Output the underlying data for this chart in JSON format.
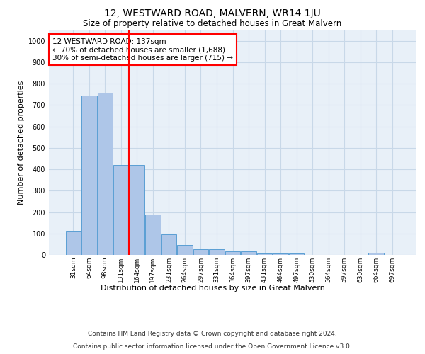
{
  "title": "12, WESTWARD ROAD, MALVERN, WR14 1JU",
  "subtitle": "Size of property relative to detached houses in Great Malvern",
  "xlabel": "Distribution of detached houses by size in Great Malvern",
  "ylabel": "Number of detached properties",
  "footer_line1": "Contains HM Land Registry data © Crown copyright and database right 2024.",
  "footer_line2": "Contains public sector information licensed under the Open Government Licence v3.0.",
  "categories": [
    "31sqm",
    "64sqm",
    "98sqm",
    "131sqm",
    "164sqm",
    "197sqm",
    "231sqm",
    "264sqm",
    "297sqm",
    "331sqm",
    "364sqm",
    "397sqm",
    "431sqm",
    "464sqm",
    "497sqm",
    "530sqm",
    "564sqm",
    "597sqm",
    "630sqm",
    "664sqm",
    "697sqm"
  ],
  "values": [
    112,
    745,
    758,
    420,
    420,
    188,
    97,
    45,
    25,
    25,
    18,
    15,
    7,
    7,
    8,
    0,
    0,
    0,
    0,
    10,
    0
  ],
  "bar_color": "#aec6e8",
  "bar_edge_color": "#5a9fd4",
  "grid_color": "#c8d8e8",
  "background_color": "#e8f0f8",
  "annotation_box_text": "12 WESTWARD ROAD: 137sqm\n← 70% of detached houses are smaller (1,688)\n30% of semi-detached houses are larger (715) →",
  "annotation_box_color": "white",
  "annotation_box_edge_color": "red",
  "vline_x_index": 3.5,
  "vline_color": "red",
  "ylim": [
    0,
    1050
  ],
  "yticks": [
    0,
    100,
    200,
    300,
    400,
    500,
    600,
    700,
    800,
    900,
    1000
  ],
  "title_fontsize": 10,
  "subtitle_fontsize": 8.5,
  "ylabel_fontsize": 8,
  "xlabel_fontsize": 8,
  "footer_fontsize": 6.5,
  "tick_labelsize": 7,
  "xtick_labelsize": 6.5,
  "ann_fontsize": 7.5
}
